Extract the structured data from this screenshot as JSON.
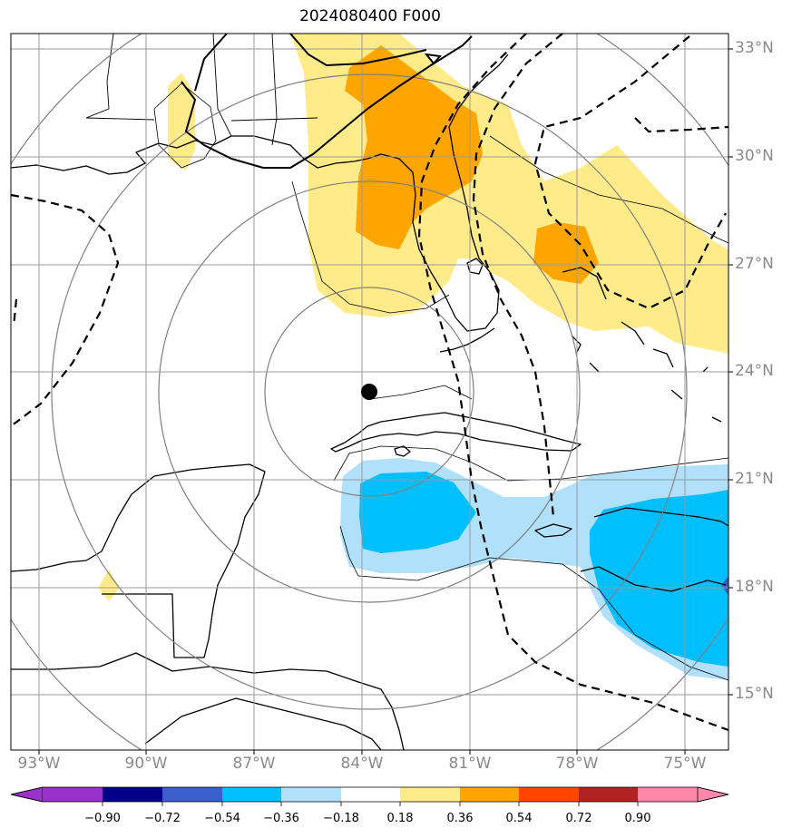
{
  "title": "2024080400 F000",
  "lat_labels": [
    "33°N",
    "30°N",
    "27°N",
    "24°N",
    "21°N",
    "18°N",
    "15°N"
  ],
  "lon_labels": [
    "93°W",
    "90°W",
    "87°W",
    "84°W",
    "81°W",
    "78°W",
    "75°W"
  ],
  "colorbar": {
    "tick_labels": [
      "−0.90",
      "−0.72",
      "−0.54",
      "−0.36",
      "−0.18",
      "0.18",
      "0.36",
      "0.54",
      "0.72",
      "0.90"
    ],
    "colors": [
      "#9932cc",
      "#00008b",
      "#3a5fcd",
      "#00bfff",
      "#b0e0fa",
      "#ffffff",
      "#ffeb8a",
      "#ffa500",
      "#ff4500",
      "#b22222",
      "#ff88aa"
    ]
  },
  "map": {
    "storm_center": {
      "lat": 23.4,
      "lon": -83.8
    },
    "fill_colors": {
      "light_yellow": "#ffeb8a",
      "orange": "#ffa500",
      "light_blue": "#b0e0fa",
      "blue": "#00bfff",
      "dark_blue": "#3a5fcd"
    }
  }
}
